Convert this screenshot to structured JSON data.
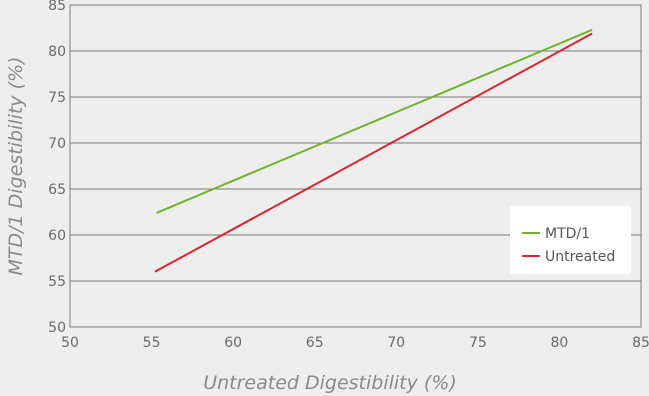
{
  "chart_data": {
    "type": "line",
    "title": "",
    "xlabel": "Untreated Digestibility (%)",
    "ylabel": "MTD/1 Digestibility (%)",
    "xlim": [
      50,
      85
    ],
    "ylim": [
      50,
      85
    ],
    "x_ticks": [
      50,
      55,
      60,
      65,
      70,
      75,
      80,
      85
    ],
    "y_ticks": [
      50,
      55,
      60,
      65,
      70,
      75,
      80,
      85
    ],
    "grid": "horizontal",
    "legend_position": "right",
    "series": [
      {
        "name": "MTD/1",
        "color": "#6fb52c",
        "points": [
          [
            55.3,
            62.4
          ],
          [
            82.0,
            82.3
          ]
        ]
      },
      {
        "name": "Untreated",
        "color": "#d9262c",
        "points": [
          [
            55.2,
            56.0
          ],
          [
            82.0,
            81.9
          ]
        ]
      }
    ]
  }
}
